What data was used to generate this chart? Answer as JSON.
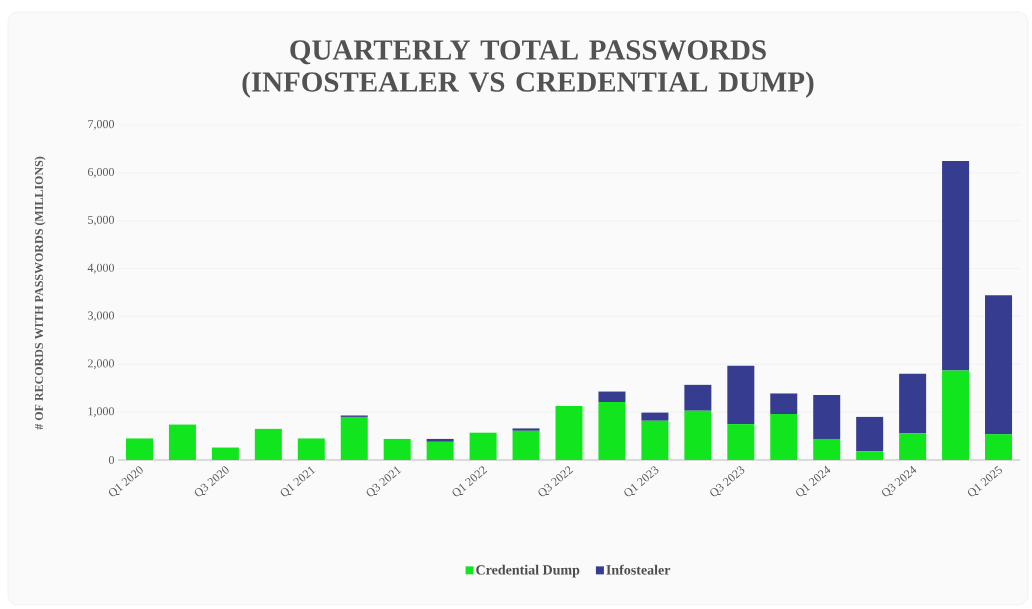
{
  "chart_data": {
    "type": "bar",
    "stacked": true,
    "title": "QUARTERLY TOTAL PASSWORDS (INFOSTEALER VS CREDENTIAL DUMP)",
    "ylabel": "# OF RECORDS WITH PASSWORDS (MILLIONS)",
    "categories": [
      "Q1 2020",
      null,
      "Q3 2020",
      null,
      "Q1 2021",
      null,
      "Q3 2021",
      null,
      "Q1 2022",
      null,
      "Q3 2022",
      null,
      "Q1 2023",
      null,
      "Q3 2023",
      null,
      "Q1 2024",
      null,
      "Q3 2024",
      null,
      "Q1 2025"
    ],
    "series": [
      {
        "name": "Credential Dump",
        "color": "#11e51e",
        "values": [
          450,
          740,
          260,
          650,
          450,
          900,
          440,
          380,
          570,
          610,
          1130,
          1210,
          820,
          1030,
          750,
          960,
          440,
          180,
          560,
          1870,
          540
        ]
      },
      {
        "name": "Infostealer",
        "color": "#363c8f",
        "values": [
          0,
          0,
          0,
          0,
          0,
          30,
          0,
          60,
          0,
          50,
          0,
          220,
          170,
          540,
          1220,
          430,
          920,
          720,
          1240,
          4380,
          2900
        ]
      }
    ],
    "ylim": [
      0,
      7000
    ],
    "yticks": [
      0,
      {
        "value": 1000,
        "label": "1,000"
      },
      {
        "value": 2000,
        "label": "2,000"
      },
      {
        "value": 3000,
        "label": "3,000"
      },
      {
        "value": 4000,
        "label": "4,000"
      },
      {
        "value": 5000,
        "label": "5,000"
      },
      {
        "value": 6000,
        "label": "6,000"
      },
      {
        "value": 7000,
        "label": "7,000"
      }
    ],
    "grid": "y",
    "legend": "bottom"
  }
}
